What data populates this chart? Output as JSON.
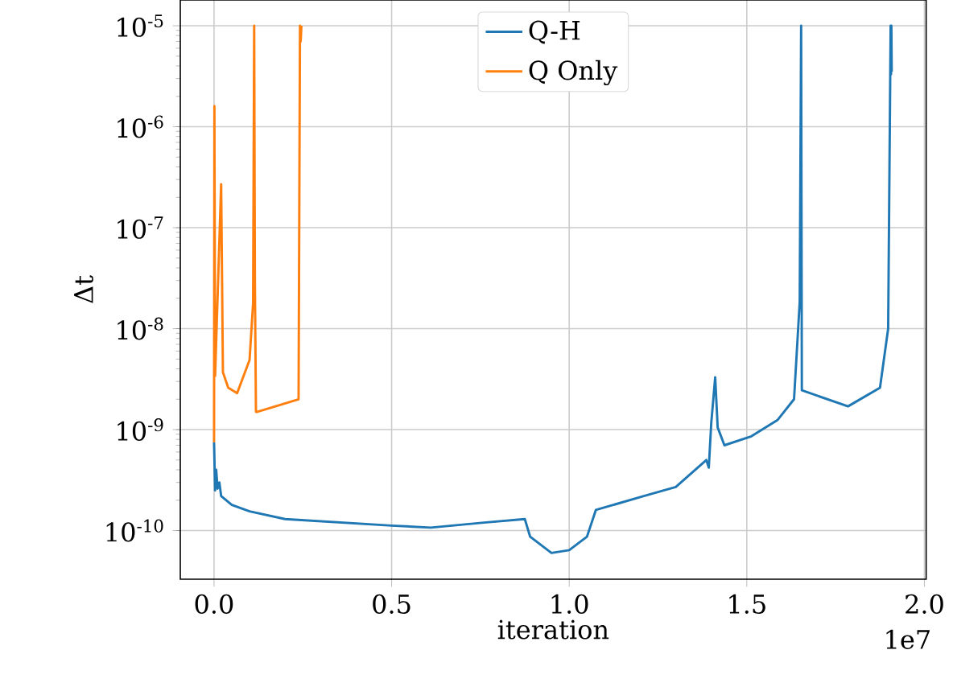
{
  "chart_data": {
    "type": "line",
    "xlabel": "iteration",
    "ylabel": "Δt",
    "annotations": [
      "1e7"
    ],
    "xlim": [
      -0.095,
      2.005
    ],
    "ylim": [
      3.3e-11,
      1.8e-05
    ],
    "log": "y",
    "grid": true,
    "legend": "top",
    "line_style": "solid",
    "marker": "none",
    "xticks": [
      {
        "value": 0,
        "label": "0.0"
      },
      {
        "value": 0.5,
        "label": "0.5"
      },
      {
        "value": 1,
        "label": "1.0"
      },
      {
        "value": 1.5,
        "label": "1.5"
      },
      {
        "value": 2,
        "label": "2.0"
      }
    ],
    "yticks": [
      {
        "value": 1e-10,
        "label": "10$^{-10}$"
      },
      {
        "value": 1e-09,
        "label": "10$^{-9}$"
      },
      {
        "value": 1e-08,
        "label": "10$^{-8}$"
      },
      {
        "value": 1e-07,
        "label": "10$^{-7}$"
      },
      {
        "value": 1e-06,
        "label": "10$^{-6}$"
      },
      {
        "value": 1e-05,
        "label": "10$^{-5}$"
      }
    ],
    "series": [
      {
        "name": "Q-H",
        "color": "#1f77b4",
        "x": [
          0,
          0.003,
          0.006,
          0.01,
          0.015,
          0.02,
          0.05,
          0.1,
          0.2,
          0.5,
          0.61,
          0.76,
          0.875,
          0.89,
          0.95,
          1.0,
          1.05,
          1.075,
          1.21,
          1.3,
          1.386,
          1.393,
          1.4,
          1.411,
          1.418,
          1.437,
          1.513,
          1.587,
          1.633,
          1.649,
          1.653,
          1.655,
          1.785,
          1.875,
          1.898,
          1.905,
          1.906,
          1.907,
          1.908
        ],
        "values": [
          7.5e-10,
          2.5e-10,
          4e-10,
          2.6e-10,
          3e-10,
          2.2e-10,
          1.8e-10,
          1.55e-10,
          1.3e-10,
          1.12e-10,
          1.07e-10,
          1.2e-10,
          1.3e-10,
          8.7e-11,
          6e-11,
          6.4e-11,
          8.7e-11,
          1.6e-10,
          2.2e-10,
          2.7e-10,
          5e-10,
          4.2e-10,
          1.17e-09,
          3.3e-09,
          1.05e-09,
          7e-10,
          8.6e-10,
          1.25e-09,
          2e-09,
          1.85e-08,
          1e-05,
          2.45e-09,
          1.7e-09,
          2.6e-09,
          1e-08,
          1e-05,
          3.3e-06,
          1e-05,
          3.5e-06
        ]
      },
      {
        "name": "Q Only",
        "color": "#ff7f0e",
        "x": [
          0,
          0.001,
          0.003,
          0.02,
          0.025,
          0.04,
          0.065,
          0.1,
          0.11,
          0.113,
          0.115,
          0.118,
          0.122,
          0.238,
          0.242,
          0.244,
          0.246
        ],
        "values": [
          7.5e-10,
          1.6e-06,
          3.4e-09,
          2.7e-07,
          3.7e-09,
          2.6e-09,
          2.3e-09,
          4.9e-09,
          1.8e-08,
          1e-05,
          3e-08,
          1.5e-09,
          1.5e-09,
          2e-09,
          1e-05,
          7e-06,
          1e-05
        ]
      }
    ]
  }
}
